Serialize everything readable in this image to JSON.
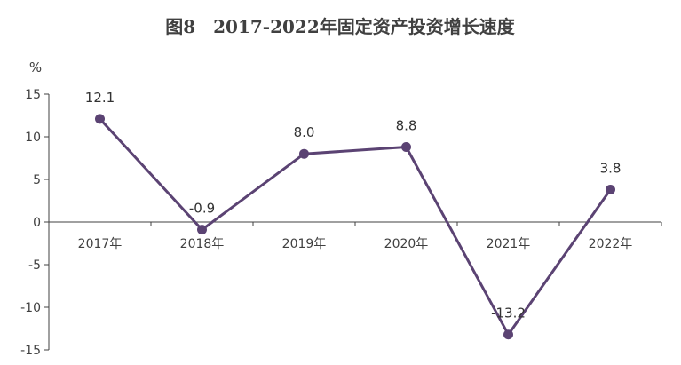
{
  "chart_data": {
    "type": "line",
    "title": "图8　2017-2022年固定资产投资增长速度",
    "y_unit": "%",
    "categories": [
      "2017年",
      "2018年",
      "2019年",
      "2020年",
      "2021年",
      "2022年"
    ],
    "series": [
      {
        "values": [
          12.1,
          -0.9,
          8.0,
          8.8,
          -13.2,
          3.8
        ],
        "labels": [
          "12.1",
          "-0.9",
          "8.0",
          "8.8",
          "-13.2",
          "3.8"
        ]
      }
    ],
    "y_ticks": [
      "15",
      "10",
      "5",
      "0",
      "-5",
      "-10",
      "-15"
    ],
    "ylim": [
      -15,
      15
    ],
    "grid": false,
    "line_color": "#5B4373",
    "axis_color": "#404040"
  }
}
